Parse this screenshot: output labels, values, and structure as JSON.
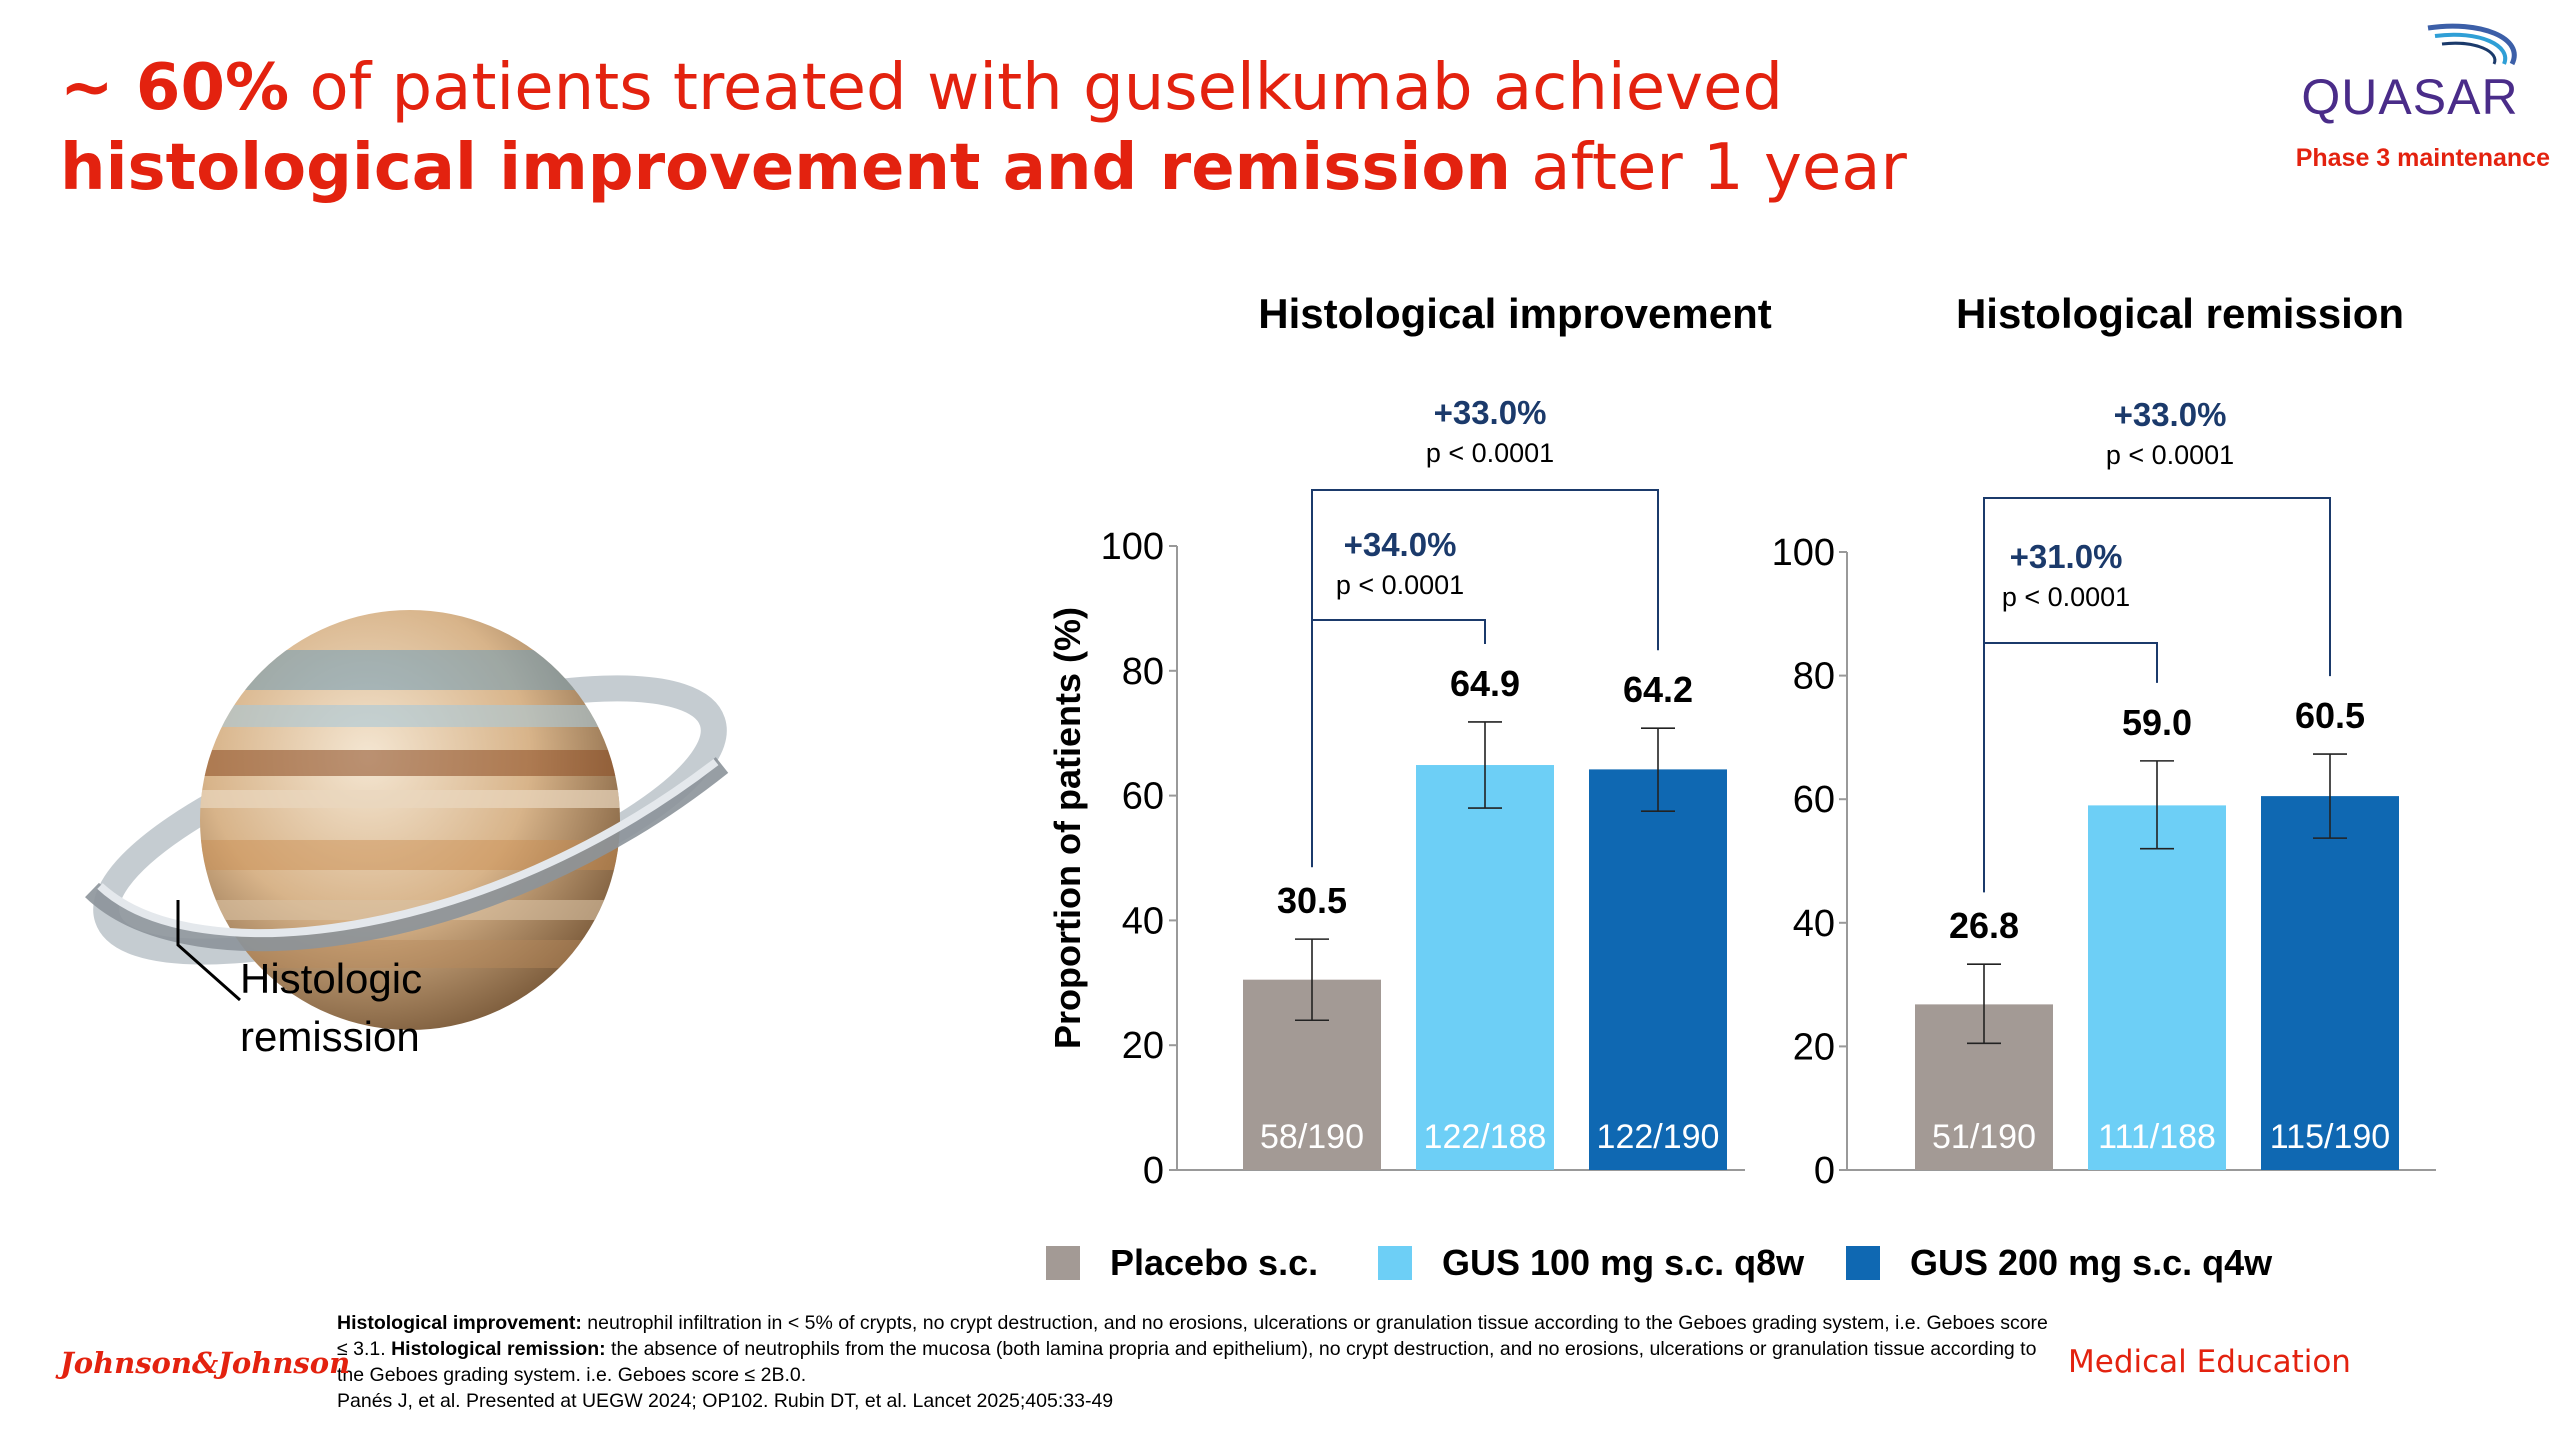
{
  "title": {
    "line1_bold": "~ 60%",
    "line1_rest": " of patients treated with guselkumab achieved",
    "line2_bold": "histological improvement and remission",
    "line2_rest": " after 1 year"
  },
  "brand": {
    "logo_text": "QUASAR",
    "phase": "Phase 3 maintenance",
    "company": "Johnson&Johnson",
    "medical_education": "Medical Education"
  },
  "illustration": {
    "label_line1": "Histologic",
    "label_line2": "remission"
  },
  "colors": {
    "accent_red": "#e3220f",
    "placebo": "#a39a95",
    "gus100": "#6dcff6",
    "gus200": "#0f68b2",
    "annotation_blue": "#1b3a6b"
  },
  "legend": [
    {
      "label": "Placebo s.c.",
      "color": "#a39a95"
    },
    {
      "label": "GUS 100 mg s.c. q8w",
      "color": "#6dcff6"
    },
    {
      "label": "GUS 200 mg s.c. q4w",
      "color": "#0f68b2"
    }
  ],
  "footnote": {
    "imp_term": "Histological improvement:",
    "imp_def": " neutrophil infiltration in < 5% of crypts, no crypt destruction, and no erosions, ulcerations or granulation tissue according to the Geboes grading system, i.e. Geboes score ≤ 3.1. ",
    "rem_term": "Histological remission:",
    "rem_def": " the absence of neutrophils from the mucosa (both lamina propria and epithelium), no crypt destruction, and no erosions, ulcerations or granulation tissue according to the Geboes grading system. i.e. Geboes score ≤ 2B.0.",
    "reference": "Panés J, et al. Presented at UEGW 2024; OP102. Rubin DT, et al. Lancet 2025;405:33-49"
  },
  "chart_data": [
    {
      "type": "bar",
      "title": "Histological improvement",
      "ylabel": "Proportion of patients (%)",
      "ylim": [
        0,
        100
      ],
      "yticks": [
        0,
        20,
        40,
        60,
        80,
        100
      ],
      "categories": [
        "Placebo s.c.",
        "GUS 100 mg s.c. q8w",
        "GUS 200 mg s.c. q4w"
      ],
      "values": [
        30.5,
        64.9,
        64.2
      ],
      "value_labels": [
        "30.5",
        "64.9",
        "64.2"
      ],
      "error_bars": [
        [
          24.0,
          37.0
        ],
        [
          58.0,
          71.8
        ],
        [
          57.5,
          70.8
        ]
      ],
      "n_labels": [
        "58/190",
        "122/188",
        "122/190"
      ],
      "comparisons": [
        {
          "from": 0,
          "to": 1,
          "diff": "+34.0%",
          "p": "p < 0.0001"
        },
        {
          "from": 0,
          "to": 2,
          "diff": "+33.0%",
          "p": "p < 0.0001"
        }
      ]
    },
    {
      "type": "bar",
      "title": "Histological remission",
      "ylabel": "",
      "ylim": [
        0,
        100
      ],
      "yticks": [
        0,
        20,
        40,
        60,
        80,
        100
      ],
      "categories": [
        "Placebo s.c.",
        "GUS 100 mg s.c. q8w",
        "GUS 200 mg s.c. q4w"
      ],
      "values": [
        26.8,
        59.0,
        60.5
      ],
      "value_labels": [
        "26.8",
        "59.0",
        "60.5"
      ],
      "error_bars": [
        [
          20.5,
          33.3
        ],
        [
          52.0,
          66.2
        ],
        [
          53.7,
          67.3
        ]
      ],
      "n_labels": [
        "51/190",
        "111/188",
        "115/190"
      ],
      "comparisons": [
        {
          "from": 0,
          "to": 1,
          "diff": "+31.0%",
          "p": "p < 0.0001"
        },
        {
          "from": 0,
          "to": 2,
          "diff": "+33.0%",
          "p": "p < 0.0001"
        }
      ]
    }
  ]
}
